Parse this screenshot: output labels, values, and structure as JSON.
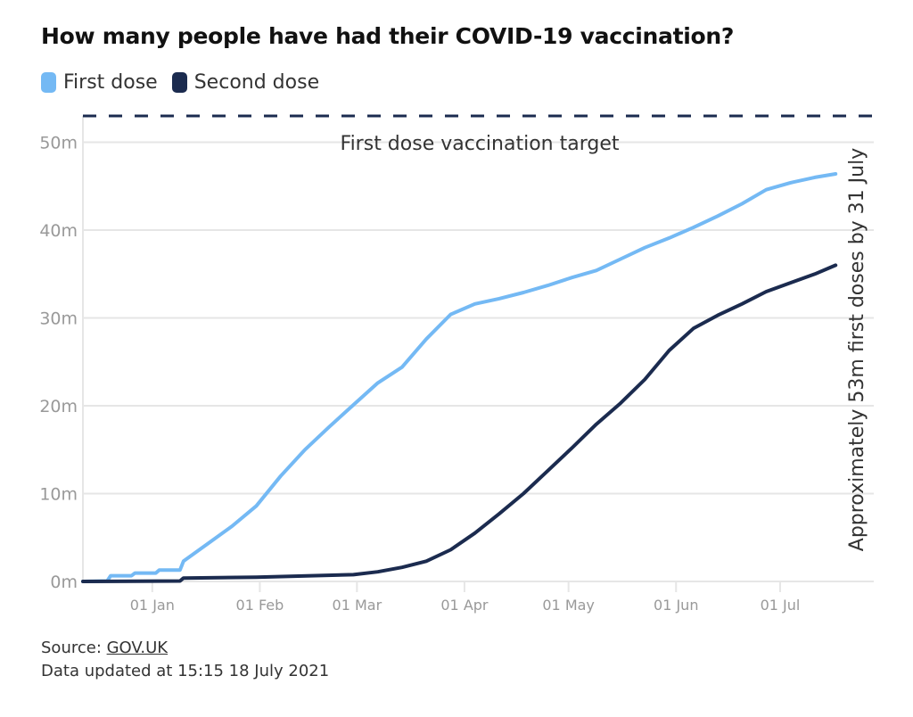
{
  "title": "How many people have had their COVID-19 vaccination?",
  "chart_data": {
    "type": "line",
    "title": "How many people have had their COVID-19 vaccination?",
    "xlabel": "",
    "ylabel": "",
    "xlim": [
      "2020-12-12",
      "2021-07-28"
    ],
    "ylim": [
      0,
      53
    ],
    "x_ticks": [
      {
        "date": "2021-01-01",
        "label": "01 Jan"
      },
      {
        "date": "2021-02-01",
        "label": "01 Feb"
      },
      {
        "date": "2021-03-01",
        "label": "01 Mar"
      },
      {
        "date": "2021-04-01",
        "label": "01 Apr"
      },
      {
        "date": "2021-05-01",
        "label": "01 May"
      },
      {
        "date": "2021-06-01",
        "label": "01 Jun"
      },
      {
        "date": "2021-07-01",
        "label": "01 Jul"
      }
    ],
    "y_ticks": [
      {
        "value": 0,
        "label": "0m"
      },
      {
        "value": 10,
        "label": "10m"
      },
      {
        "value": 20,
        "label": "20m"
      },
      {
        "value": 30,
        "label": "30m"
      },
      {
        "value": 40,
        "label": "40m"
      },
      {
        "value": 50,
        "label": "50m"
      }
    ],
    "grid": "horizontal",
    "legend_placement": "top-left",
    "target": {
      "value": 53,
      "label": "First dose vaccination target",
      "side_label": "Approximately 53m first doses by 31 July",
      "color": "#1b2b4f"
    },
    "series": [
      {
        "name": "First dose",
        "color": "#74b9f4",
        "points": [
          [
            "2020-12-12",
            0
          ],
          [
            "2020-12-19",
            0.05
          ],
          [
            "2020-12-20",
            0.65
          ],
          [
            "2020-12-26",
            0.65
          ],
          [
            "2020-12-27",
            0.95
          ],
          [
            "2021-01-02",
            0.95
          ],
          [
            "2021-01-03",
            1.3
          ],
          [
            "2021-01-09",
            1.3
          ],
          [
            "2021-01-10",
            2.3
          ],
          [
            "2021-01-17",
            4.3
          ],
          [
            "2021-01-24",
            6.3
          ],
          [
            "2021-01-31",
            8.6
          ],
          [
            "2021-02-07",
            12.0
          ],
          [
            "2021-02-14",
            15.0
          ],
          [
            "2021-02-21",
            17.6
          ],
          [
            "2021-02-28",
            20.1
          ],
          [
            "2021-03-07",
            22.6
          ],
          [
            "2021-03-14",
            24.4
          ],
          [
            "2021-03-21",
            27.6
          ],
          [
            "2021-03-28",
            30.4
          ],
          [
            "2021-04-04",
            31.6
          ],
          [
            "2021-04-11",
            32.2
          ],
          [
            "2021-04-18",
            32.9
          ],
          [
            "2021-04-25",
            33.7
          ],
          [
            "2021-05-02",
            34.6
          ],
          [
            "2021-05-09",
            35.4
          ],
          [
            "2021-05-16",
            36.7
          ],
          [
            "2021-05-23",
            38.0
          ],
          [
            "2021-05-30",
            39.1
          ],
          [
            "2021-06-06",
            40.3
          ],
          [
            "2021-06-13",
            41.6
          ],
          [
            "2021-06-20",
            43.0
          ],
          [
            "2021-06-27",
            44.6
          ],
          [
            "2021-07-04",
            45.4
          ],
          [
            "2021-07-11",
            46.0
          ],
          [
            "2021-07-17",
            46.4
          ]
        ]
      },
      {
        "name": "Second dose",
        "color": "#1b2b4f",
        "points": [
          [
            "2020-12-12",
            0
          ],
          [
            "2021-01-09",
            0.05
          ],
          [
            "2021-01-10",
            0.39
          ],
          [
            "2021-01-31",
            0.49
          ],
          [
            "2021-02-28",
            0.77
          ],
          [
            "2021-03-07",
            1.1
          ],
          [
            "2021-03-14",
            1.6
          ],
          [
            "2021-03-21",
            2.3
          ],
          [
            "2021-03-28",
            3.6
          ],
          [
            "2021-04-04",
            5.5
          ],
          [
            "2021-04-11",
            7.7
          ],
          [
            "2021-04-18",
            10.0
          ],
          [
            "2021-04-25",
            12.6
          ],
          [
            "2021-05-02",
            15.2
          ],
          [
            "2021-05-09",
            17.9
          ],
          [
            "2021-05-16",
            20.3
          ],
          [
            "2021-05-23",
            23.0
          ],
          [
            "2021-05-30",
            26.3
          ],
          [
            "2021-06-06",
            28.8
          ],
          [
            "2021-06-13",
            30.3
          ],
          [
            "2021-06-20",
            31.6
          ],
          [
            "2021-06-27",
            33.0
          ],
          [
            "2021-07-04",
            34.0
          ],
          [
            "2021-07-11",
            35.0
          ],
          [
            "2021-07-17",
            36.0
          ]
        ]
      }
    ]
  },
  "legend": [
    {
      "label": "First dose",
      "color": "#74b9f4"
    },
    {
      "label": "Second dose",
      "color": "#1b2b4f"
    }
  ],
  "footer": {
    "source_prefix": "Source: ",
    "source_link": "GOV.UK",
    "updated": "Data updated at 15:15 18 July 2021"
  }
}
